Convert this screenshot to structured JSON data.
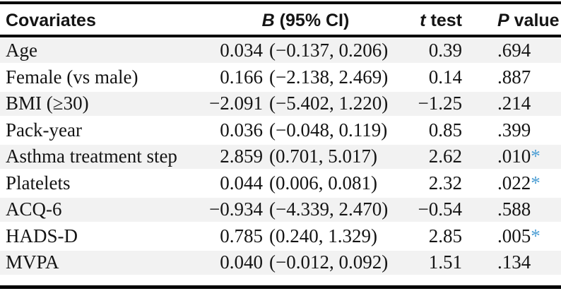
{
  "header": {
    "covariates": "Covariates",
    "b_symbol": "B",
    "b_rest": " (95% CI)",
    "t_symbol": "t",
    "t_rest": " test",
    "p_symbol": "P",
    "p_rest": " value"
  },
  "rows": [
    {
      "covariate": "Age",
      "b": "0.034",
      "ci": "(−0.137, 0.206)",
      "t": "0.39",
      "p": ".694",
      "star": ""
    },
    {
      "covariate": "Female (vs male)",
      "b": "0.166",
      "ci": "(−2.138, 2.469)",
      "t": "0.14",
      "p": ".887",
      "star": ""
    },
    {
      "covariate": "BMI (≥30)",
      "b": "−2.091",
      "ci": "(−5.402, 1.220)",
      "t": "−1.25",
      "p": ".214",
      "star": ""
    },
    {
      "covariate": "Pack-year",
      "b": "0.036",
      "ci": "(−0.048, 0.119)",
      "t": "0.85",
      "p": ".399",
      "star": ""
    },
    {
      "covariate": "Asthma treatment step",
      "b": "2.859",
      "ci": "(0.701, 5.017)",
      "t": "2.62",
      "p": ".010",
      "star": "*"
    },
    {
      "covariate": "Platelets",
      "b": "0.044",
      "ci": "(0.006, 0.081)",
      "t": "2.32",
      "p": ".022",
      "star": "*"
    },
    {
      "covariate": "ACQ-6",
      "b": "−0.934",
      "ci": "(−4.339, 2.470)",
      "t": "−0.54",
      "p": ".588",
      "star": ""
    },
    {
      "covariate": "HADS-D",
      "b": "0.785",
      "ci": "(0.240, 1.329)",
      "t": "2.85",
      "p": ".005",
      "star": "*"
    },
    {
      "covariate": "MVPA",
      "b": "0.040",
      "ci": "(−0.012, 0.092)",
      "t": "1.51",
      "p": ".134",
      "star": ""
    }
  ],
  "colors": {
    "stripe": "#f2f2f2",
    "rule": "#000000",
    "significance_star": "#4E9FD4",
    "text": "#141414"
  }
}
